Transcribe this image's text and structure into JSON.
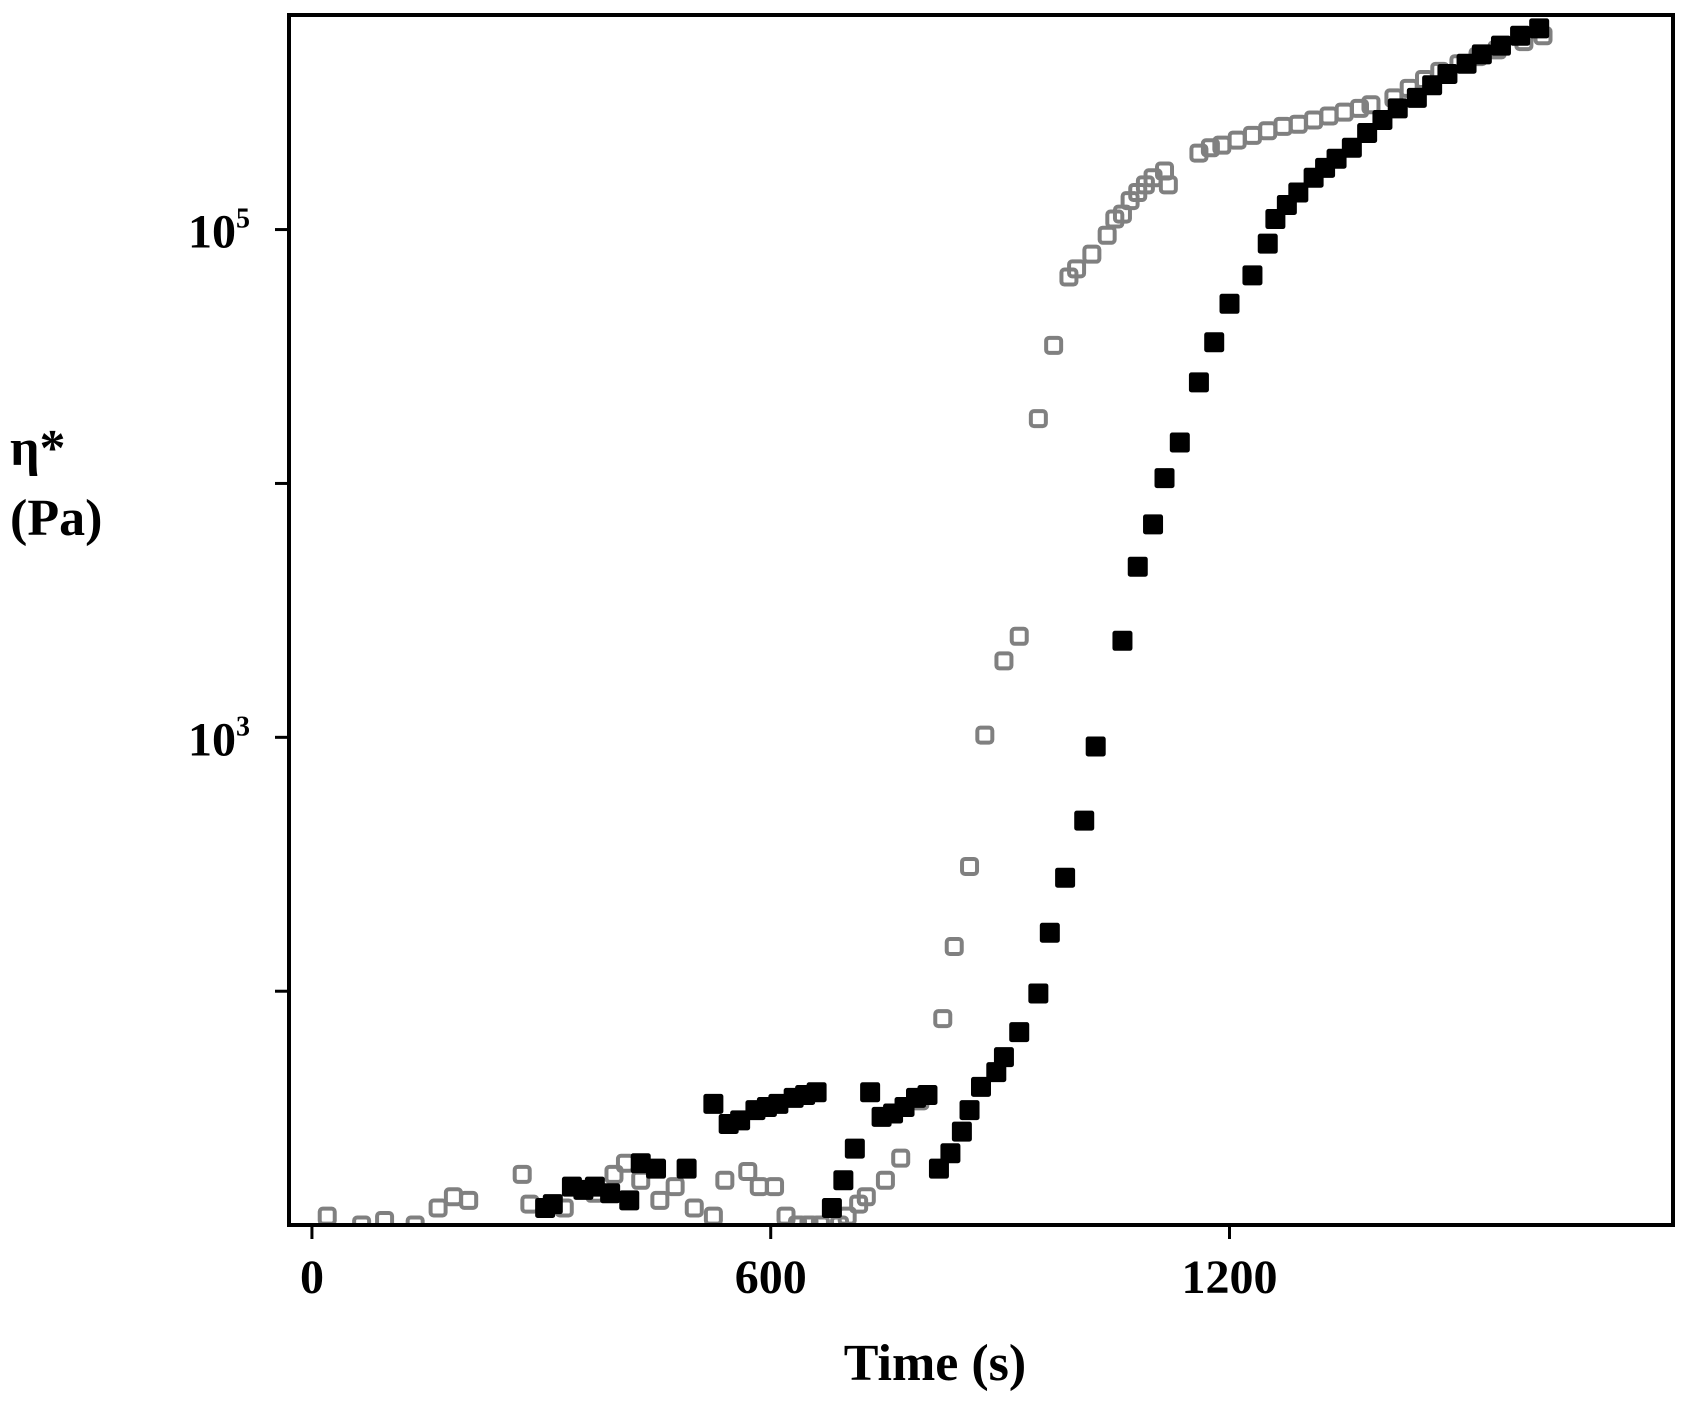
{
  "chart_data": {
    "type": "scatter",
    "xlabel": "Time (s)",
    "ylabel_line1": "η*",
    "ylabel_line2": "(Pa)",
    "xlim": [
      -30,
      1780
    ],
    "ylim": [
      12,
      700000
    ],
    "yscale": "log",
    "x_ticks": [
      {
        "value": 0,
        "label": "0"
      },
      {
        "value": 600,
        "label": "600"
      },
      {
        "value": 1200,
        "label": "1200"
      }
    ],
    "y_major_ticks": [
      {
        "value": 1000,
        "base": "10",
        "exp": "3"
      },
      {
        "value": 100000,
        "base": "10",
        "exp": "5"
      }
    ],
    "y_minor_ticks": [
      100,
      10000,
      1000000
    ],
    "grid": false,
    "series": [
      {
        "marker": "open-square",
        "color": "#808080",
        "points": [
          [
            20,
            13
          ],
          [
            65,
            12
          ],
          [
            95,
            12.5
          ],
          [
            135,
            12
          ],
          [
            165,
            14
          ],
          [
            185,
            15.5
          ],
          [
            205,
            15
          ],
          [
            275,
            19
          ],
          [
            285,
            14.5
          ],
          [
            330,
            14
          ],
          [
            370,
            16
          ],
          [
            395,
            19
          ],
          [
            410,
            21
          ],
          [
            430,
            18
          ],
          [
            455,
            15
          ],
          [
            475,
            17
          ],
          [
            500,
            14
          ],
          [
            525,
            13
          ],
          [
            540,
            18
          ],
          [
            570,
            19.5
          ],
          [
            585,
            17
          ],
          [
            605,
            17
          ],
          [
            620,
            13
          ],
          [
            635,
            12
          ],
          [
            650,
            12
          ],
          [
            665,
            12
          ],
          [
            690,
            12
          ],
          [
            700,
            13
          ],
          [
            715,
            14.5
          ],
          [
            725,
            15.5
          ],
          [
            750,
            18
          ],
          [
            770,
            22
          ],
          [
            795,
            37
          ],
          [
            825,
            78
          ],
          [
            840,
            150
          ],
          [
            860,
            310
          ],
          [
            880,
            1020
          ],
          [
            905,
            2000
          ],
          [
            925,
            2500
          ],
          [
            950,
            18000
          ],
          [
            970,
            35000
          ],
          [
            990,
            65000
          ],
          [
            1000,
            70000
          ],
          [
            1020,
            80000
          ],
          [
            1040,
            95000
          ],
          [
            1050,
            110000
          ],
          [
            1060,
            115000
          ],
          [
            1070,
            130000
          ],
          [
            1080,
            140000
          ],
          [
            1090,
            150000
          ],
          [
            1100,
            160000
          ],
          [
            1115,
            170000
          ],
          [
            1120,
            150000
          ],
          [
            1160,
            200000
          ],
          [
            1175,
            210000
          ],
          [
            1190,
            215000
          ],
          [
            1210,
            225000
          ],
          [
            1230,
            235000
          ],
          [
            1250,
            245000
          ],
          [
            1270,
            255000
          ],
          [
            1290,
            260000
          ],
          [
            1310,
            270000
          ],
          [
            1330,
            280000
          ],
          [
            1350,
            290000
          ],
          [
            1370,
            300000
          ],
          [
            1385,
            310000
          ],
          [
            1415,
            330000
          ],
          [
            1435,
            360000
          ],
          [
            1455,
            390000
          ],
          [
            1475,
            420000
          ],
          [
            1500,
            450000
          ],
          [
            1525,
            480000
          ],
          [
            1550,
            510000
          ],
          [
            1585,
            550000
          ],
          [
            1610,
            580000
          ]
        ]
      },
      {
        "marker": "filled-square",
        "color": "#000000",
        "points": [
          [
            240,
            11
          ],
          [
            275,
            11
          ],
          [
            305,
            14
          ],
          [
            315,
            14.5
          ],
          [
            340,
            17
          ],
          [
            355,
            16.5
          ],
          [
            370,
            17
          ],
          [
            390,
            16
          ],
          [
            415,
            15
          ],
          [
            430,
            21
          ],
          [
            450,
            20
          ],
          [
            475,
            11
          ],
          [
            490,
            20
          ],
          [
            525,
            36
          ],
          [
            545,
            30
          ],
          [
            560,
            31
          ],
          [
            580,
            34
          ],
          [
            595,
            35
          ],
          [
            610,
            36
          ],
          [
            630,
            38
          ],
          [
            645,
            39
          ],
          [
            660,
            40
          ],
          [
            680,
            14
          ],
          [
            695,
            18
          ],
          [
            710,
            24
          ],
          [
            730,
            40
          ],
          [
            745,
            32
          ],
          [
            760,
            33
          ],
          [
            775,
            35
          ],
          [
            790,
            38
          ],
          [
            805,
            39
          ],
          [
            820,
            20
          ],
          [
            835,
            23
          ],
          [
            850,
            28
          ],
          [
            860,
            34
          ],
          [
            875,
            42
          ],
          [
            895,
            48
          ],
          [
            905,
            55
          ],
          [
            925,
            69
          ],
          [
            950,
            98
          ],
          [
            965,
            170
          ],
          [
            985,
            280
          ],
          [
            1010,
            470
          ],
          [
            1025,
            920
          ],
          [
            1060,
            2400
          ],
          [
            1080,
            4700
          ],
          [
            1100,
            6900
          ],
          [
            1115,
            10500
          ],
          [
            1135,
            14500
          ],
          [
            1160,
            25000
          ],
          [
            1180,
            36000
          ],
          [
            1200,
            51000
          ],
          [
            1230,
            66000
          ],
          [
            1250,
            88000
          ],
          [
            1260,
            110000
          ],
          [
            1275,
            125000
          ],
          [
            1290,
            140000
          ],
          [
            1310,
            160000
          ],
          [
            1325,
            175000
          ],
          [
            1340,
            190000
          ],
          [
            1360,
            210000
          ],
          [
            1380,
            240000
          ],
          [
            1400,
            270000
          ],
          [
            1420,
            300000
          ],
          [
            1445,
            330000
          ],
          [
            1465,
            370000
          ],
          [
            1485,
            410000
          ],
          [
            1510,
            450000
          ],
          [
            1530,
            490000
          ],
          [
            1555,
            530000
          ],
          [
            1580,
            580000
          ],
          [
            1605,
            620000
          ]
        ]
      }
    ]
  }
}
